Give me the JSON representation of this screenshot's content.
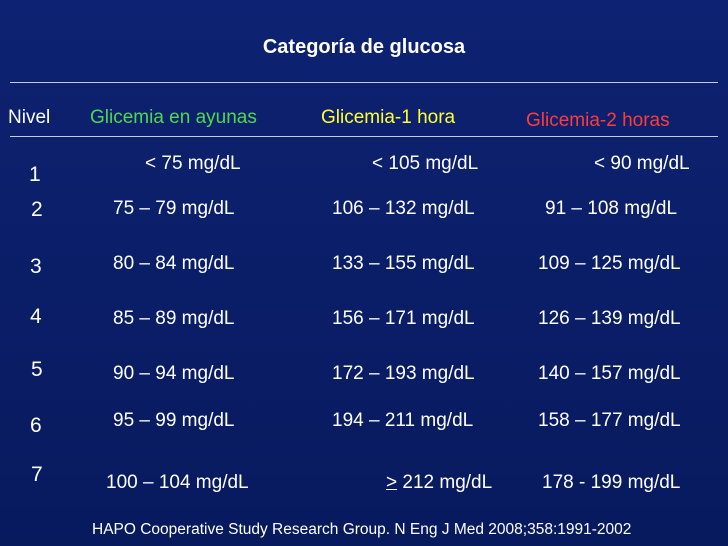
{
  "title": "Categoría de glucosa",
  "headers": {
    "nivel": "Nivel",
    "ayunas": "Glicemia en ayunas",
    "hora1": "Glicemia-1 hora",
    "hora2": "Glicemia-2 horas"
  },
  "rows": [
    {
      "nivel": "1",
      "ayunas": "< 75 mg/dL",
      "hora1": "< 105 mg/dL",
      "hora2": "< 90 mg/dL"
    },
    {
      "nivel": "2",
      "ayunas": "75 – 79 mg/dL",
      "hora1": "106 – 132 mg/dL",
      "hora2": "91 – 108 mg/dL"
    },
    {
      "nivel": "3",
      "ayunas": "80 – 84 mg/dL",
      "hora1": "133 – 155 mg/dL",
      "hora2": "109 – 125 mg/dL"
    },
    {
      "nivel": "4",
      "ayunas": "85 – 89 mg/dL",
      "hora1": "156 – 171 mg/dL",
      "hora2": "126 – 139 mg/dL"
    },
    {
      "nivel": "5",
      "ayunas": "90 – 94 mg/dL",
      "hora1": "172 – 193 mg/dL",
      "hora2": "140 – 157 mg/dL"
    },
    {
      "nivel": "6",
      "ayunas": "95 – 99 mg/dL",
      "hora1": "194 – 211 mg/dL",
      "hora2": "158 – 177 mg/dL"
    },
    {
      "nivel": "7",
      "ayunas": "100 – 104 mg/dL",
      "hora1_symbol": ">",
      "hora1": " 212 mg/dL",
      "hora2": "178 - 199 mg/dL"
    }
  ],
  "footer": "HAPO Cooperative Study Research Group. N Eng J Med 2008;358:1991-2002",
  "colors": {
    "background": "#0b1f6b",
    "ayunas": "#4cd94c",
    "hora1": "#ffff33",
    "hora2": "#ff3b3b"
  }
}
